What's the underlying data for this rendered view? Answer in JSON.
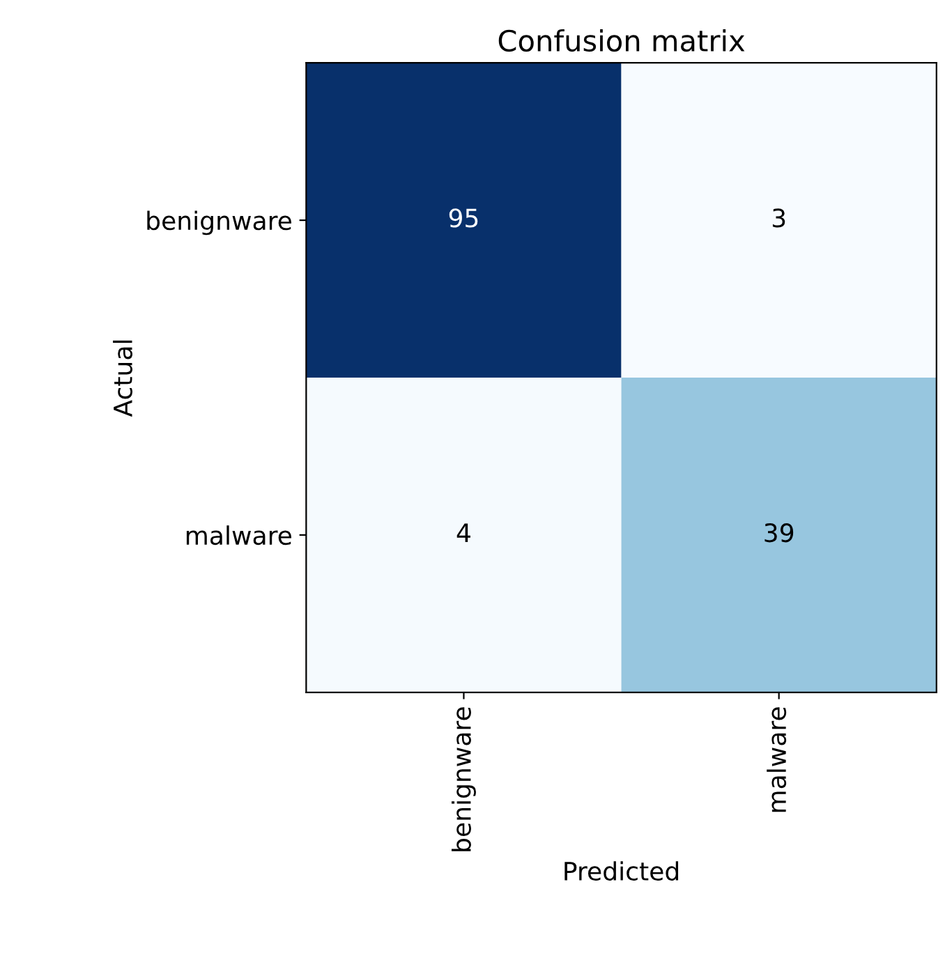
{
  "chart_data": {
    "type": "heatmap",
    "title": "Confusion matrix",
    "xlabel": "Predicted",
    "ylabel": "Actual",
    "categories": [
      "benignware",
      "malware"
    ],
    "y_categories": [
      "benignware",
      "malware"
    ],
    "cells": [
      [
        95,
        3
      ],
      [
        4,
        39
      ]
    ],
    "data_labels": true,
    "grid": false
  }
}
